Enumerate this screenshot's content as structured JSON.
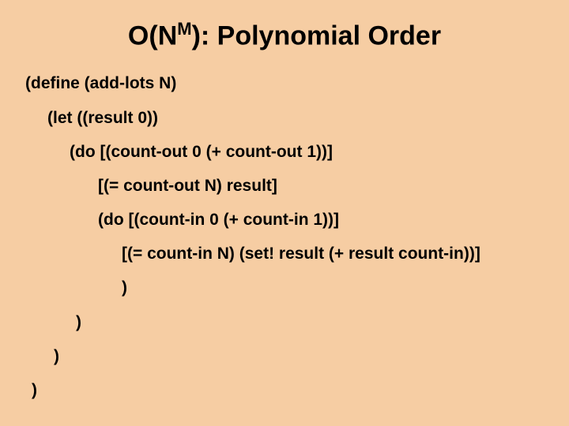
{
  "title_prefix": "O(N",
  "title_sup": "M",
  "title_suffix": "):  Polynomial Order",
  "lines": {
    "l1": "(define (add-lots N)",
    "l2": "(let ((result 0))",
    "l3": "(do [(count-out  0 (+ count-out 1))]",
    "l4": "[(= count-out N) result]",
    "l5": "(do [(count-in 0 (+ count-in 1))]",
    "l6": "[(= count-in N) (set! result (+ result count-in))]",
    "l7": ")",
    "l8": ")",
    "l9": ")",
    "l10": ")"
  },
  "styling": {
    "background_color": "#f6cda3",
    "text_color": "#000000",
    "title_fontsize": 34,
    "sup_fontsize": 22,
    "code_fontsize": 21,
    "font_weight": "bold",
    "font_family": "Arial"
  }
}
